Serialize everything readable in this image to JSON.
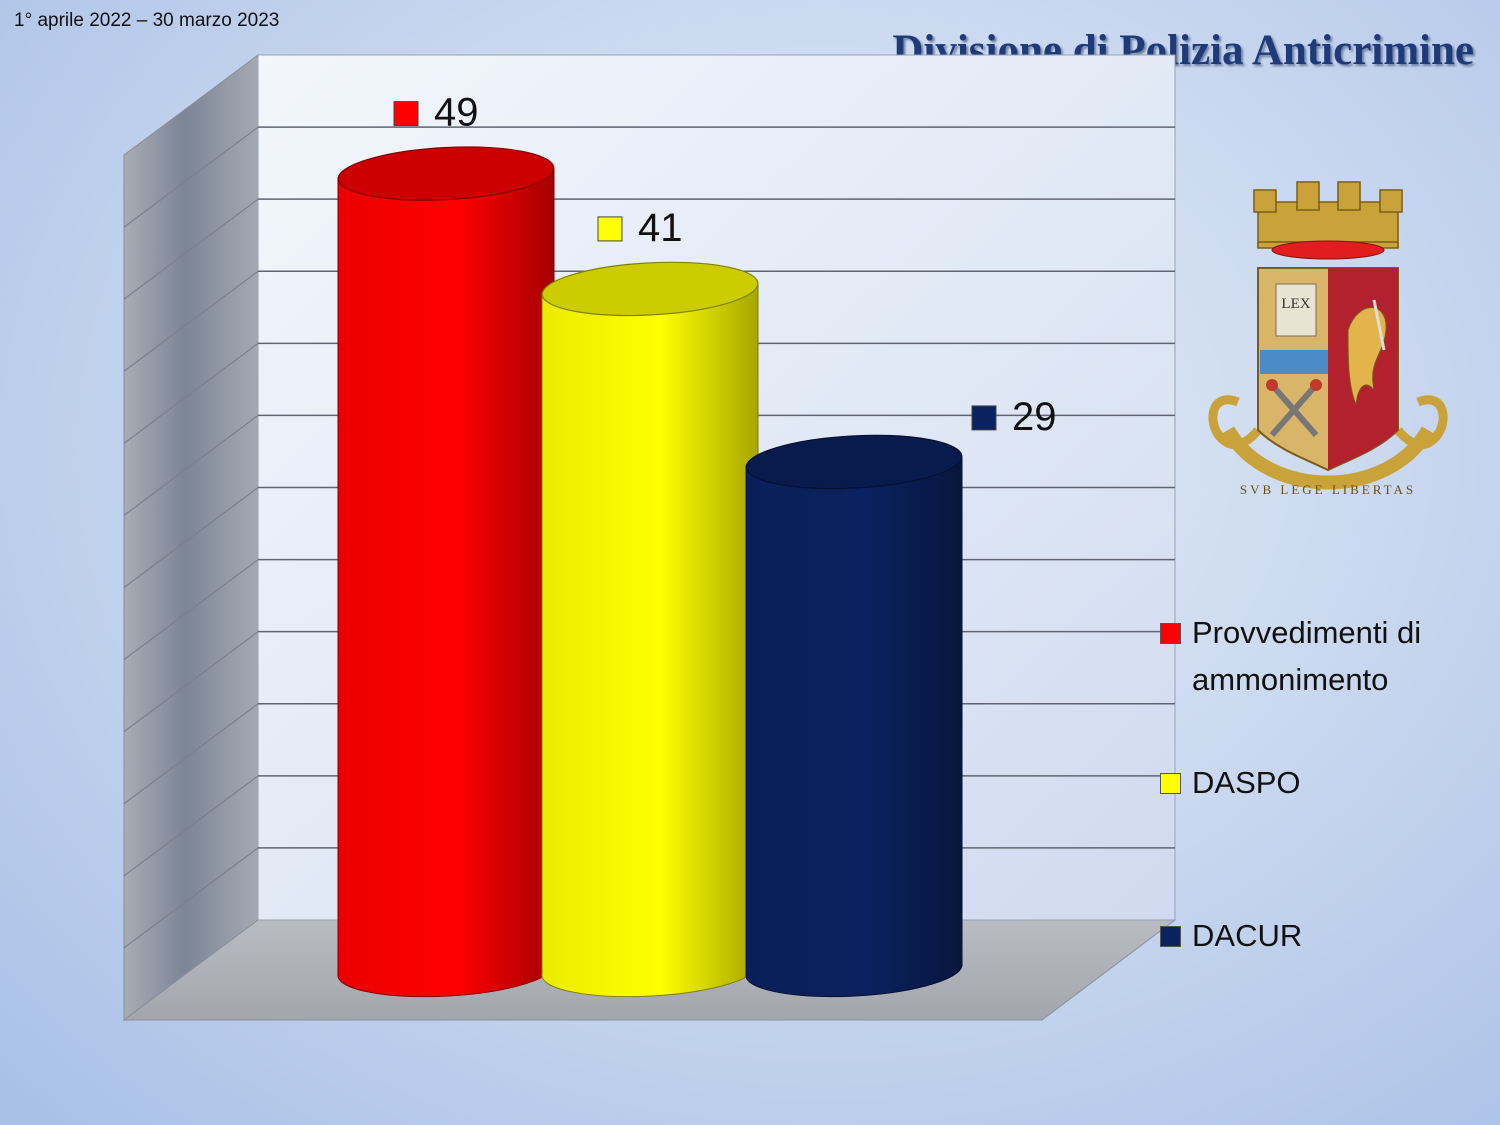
{
  "header": {
    "date_range": "1° aprile 2022 – 30 marzo 2023",
    "title": "Divisione di Polizia Anticrimine"
  },
  "crest": {
    "book_text": "LEX",
    "motto": "SVB LEGE LIBERTAS"
  },
  "chart_data": {
    "type": "bar",
    "style": "3d-cylinder",
    "title": "",
    "xlabel": "",
    "ylabel": "",
    "categories": [
      "Provvedimenti di ammonimento",
      "DASPO",
      "DACUR"
    ],
    "values": [
      49,
      41,
      29
    ],
    "colors": [
      "#ff0000",
      "#ffff00",
      "#0b2260"
    ],
    "data_labels": [
      "49",
      "41",
      "29"
    ],
    "ylim": [
      0,
      60
    ],
    "grid": true,
    "legend_position": "right"
  }
}
